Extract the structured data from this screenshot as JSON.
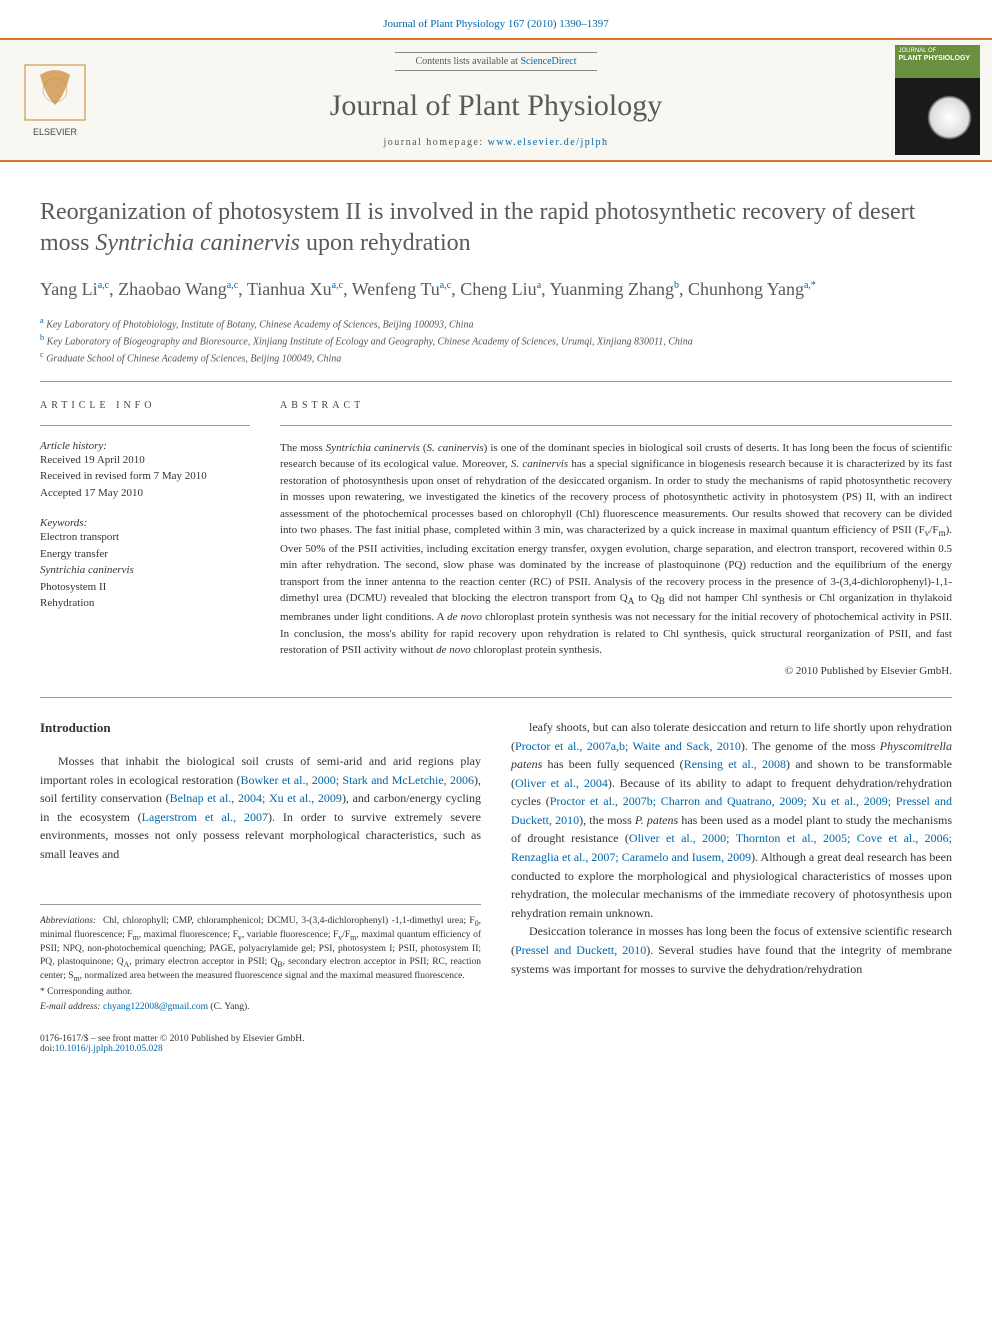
{
  "header": {
    "citation": "Journal of Plant Physiology 167 (2010) 1390–1397"
  },
  "masthead": {
    "contents_prefix": "Contents lists available at ",
    "contents_link": "ScienceDirect",
    "journal_name": "Journal of Plant Physiology",
    "homepage_prefix": "journal homepage: ",
    "homepage_link": "www.elsevier.de/jplph",
    "publisher_label": "ELSEVIER",
    "cover_label_top": "JOURNAL OF",
    "cover_label_bottom": "PLANT PHYSIOLOGY"
  },
  "article": {
    "title_pre": "Reorganization of photosystem II is involved in the rapid photosynthetic recovery of desert moss ",
    "title_italic": "Syntrichia caninervis",
    "title_post": " upon rehydration",
    "authors_html": "Yang Li<sup>a,c</sup>, Zhaobao Wang<sup>a,c</sup>, Tianhua Xu<sup>a,c</sup>, Wenfeng Tu<sup>a,c</sup>, Cheng Liu<sup>a</sup>, Yuanming Zhang<sup>b</sup>, Chunhong Yang<sup>a,*</sup>",
    "affiliations": [
      {
        "sup": "a",
        "text": "Key Laboratory of Photobiology, Institute of Botany, Chinese Academy of Sciences, Beijing 100093, China"
      },
      {
        "sup": "b",
        "text": "Key Laboratory of Biogeography and Bioresource, Xinjiang Institute of Ecology and Geography, Chinese Academy of Sciences, Urumqi, Xinjiang 830011, China"
      },
      {
        "sup": "c",
        "text": "Graduate School of Chinese Academy of Sciences, Beijing 100049, China"
      }
    ]
  },
  "info": {
    "heading": "ARTICLE INFO",
    "history_label": "Article history:",
    "history": [
      "Received 19 April 2010",
      "Received in revised form 7 May 2010",
      "Accepted 17 May 2010"
    ],
    "keywords_label": "Keywords:",
    "keywords": [
      "Electron transport",
      "Energy transfer",
      "Syntrichia caninervis",
      "Photosystem II",
      "Rehydration"
    ]
  },
  "abstract": {
    "heading": "ABSTRACT",
    "text": "The moss <em>Syntrichia caninervis</em> (<em>S. caninervis</em>) is one of the dominant species in biological soil crusts of deserts. It has long been the focus of scientific research because of its ecological value. Moreover, <em>S. caninervis</em> has a special significance in biogenesis research because it is characterized by its fast restoration of photosynthesis upon onset of rehydration of the desiccated organism. In order to study the mechanisms of rapid photosynthetic recovery in mosses upon rewatering, we investigated the kinetics of the recovery process of photosynthetic activity in photosystem (PS) II, with an indirect assessment of the photochemical processes based on chlorophyll (Chl) fluorescence measurements. Our results showed that recovery can be divided into two phases. The fast initial phase, completed within 3 min, was characterized by a quick increase in maximal quantum efficiency of PSII (F<sub>v</sub>/F<sub>m</sub>). Over 50% of the PSII activities, including excitation energy transfer, oxygen evolution, charge separation, and electron transport, recovered within 0.5 min after rehydration. The second, slow phase was dominated by the increase of plastoquinone (PQ) reduction and the equilibrium of the energy transport from the inner antenna to the reaction center (RC) of PSII. Analysis of the recovery process in the presence of 3-(3,4-dichlorophenyl)-1,1-dimethyl urea (DCMU) revealed that blocking the electron transport from Q<sub>A</sub> to Q<sub>B</sub> did not hamper Chl synthesis or Chl organization in thylakoid membranes under light conditions. A <em>de novo</em> chloroplast protein synthesis was not necessary for the initial recovery of photochemical activity in PSII. In conclusion, the moss's ability for rapid recovery upon rehydration is related to Chl synthesis, quick structural reorganization of PSII, and fast restoration of PSII activity without <em>de novo</em> chloroplast protein synthesis.",
    "copyright": "© 2010 Published by Elsevier GmbH."
  },
  "body": {
    "intro_heading": "Introduction",
    "col1_p1": "Mosses that inhabit the biological soil crusts of semi-arid and arid regions play important roles in ecological restoration (<a>Bowker et al., 2000; Stark and McLetchie, 2006</a>), soil fertility conservation (<a>Belnap et al., 2004; Xu et al., 2009</a>), and carbon/energy cycling in the ecosystem (<a>Lagerstrom et al., 2007</a>). In order to survive extremely severe environments, mosses not only possess relevant morphological characteristics, such as small leaves and",
    "col2_p1": "leafy shoots, but can also tolerate desiccation and return to life shortly upon rehydration (<a>Proctor et al., 2007a,b; Waite and Sack, 2010</a>). The genome of the moss <em>Physcomitrella patens</em> has been fully sequenced (<a>Rensing et al., 2008</a>) and shown to be transformable (<a>Oliver et al., 2004</a>). Because of its ability to adapt to frequent dehydration/rehydration cycles (<a>Proctor et al., 2007b; Charron and Quatrano, 2009; Xu et al., 2009; Pressel and Duckett, 2010</a>), the moss <em>P. patens</em> has been used as a model plant to study the mechanisms of drought resistance (<a>Oliver et al., 2000; Thornton et al., 2005; Cove et al., 2006; Renzaglia et al., 2007; Caramelo and Iusem, 2009</a>). Although a great deal research has been conducted to explore the morphological and physiological characteristics of mosses upon rehydration, the molecular mechanisms of the immediate recovery of photosynthesis upon rehydration remain unknown.",
    "col2_p2": "Desiccation tolerance in mosses has long been the focus of extensive scientific research (<a>Pressel and Duckett, 2010</a>). Several studies have found that the integrity of membrane systems was important for mosses to survive the dehydration/rehydration"
  },
  "footnotes": {
    "abbrev_label": "Abbreviations:",
    "abbrev_text": "Chl, chlorophyll; CMP, chloramphenicol; DCMU, 3-(3,4-dichlorophenyl) -1,1-dimethyl urea; F<sub>0</sub>, minimal fluorescence; F<sub>m</sub>, maximal fluorescence; F<sub>v</sub>, variable fluorescence; F<sub>v</sub>/F<sub>m</sub>, maximal quantum efficiency of PSII; NPQ, non-photochemical quenching; PAGE, polyacrylamide gel; PSI, photosystem I; PSII, photosystem II; PQ, plastoquinone; Q<sub>A</sub>, primary electron acceptor in PSII; Q<sub>B</sub>, secondary electron acceptor in PSII; RC, reaction center; S<sub>m</sub>, normalized area between the measured fluorescence signal and the maximal measured fluorescence.",
    "corr_label": "* Corresponding author.",
    "email_label": "E-mail address:",
    "email": "chyang122008@gmail.com",
    "email_name": "(C. Yang)."
  },
  "footer": {
    "issn_line": "0176-1617/$ – see front matter © 2010 Published by Elsevier GmbH.",
    "doi_prefix": "doi:",
    "doi": "10.1016/j.jplph.2010.05.028"
  },
  "colors": {
    "link": "#0066aa",
    "rule": "#d9742e",
    "text": "#333333",
    "heading_gray": "#5a5a5a",
    "masthead_bg": "#f9f7f2"
  }
}
